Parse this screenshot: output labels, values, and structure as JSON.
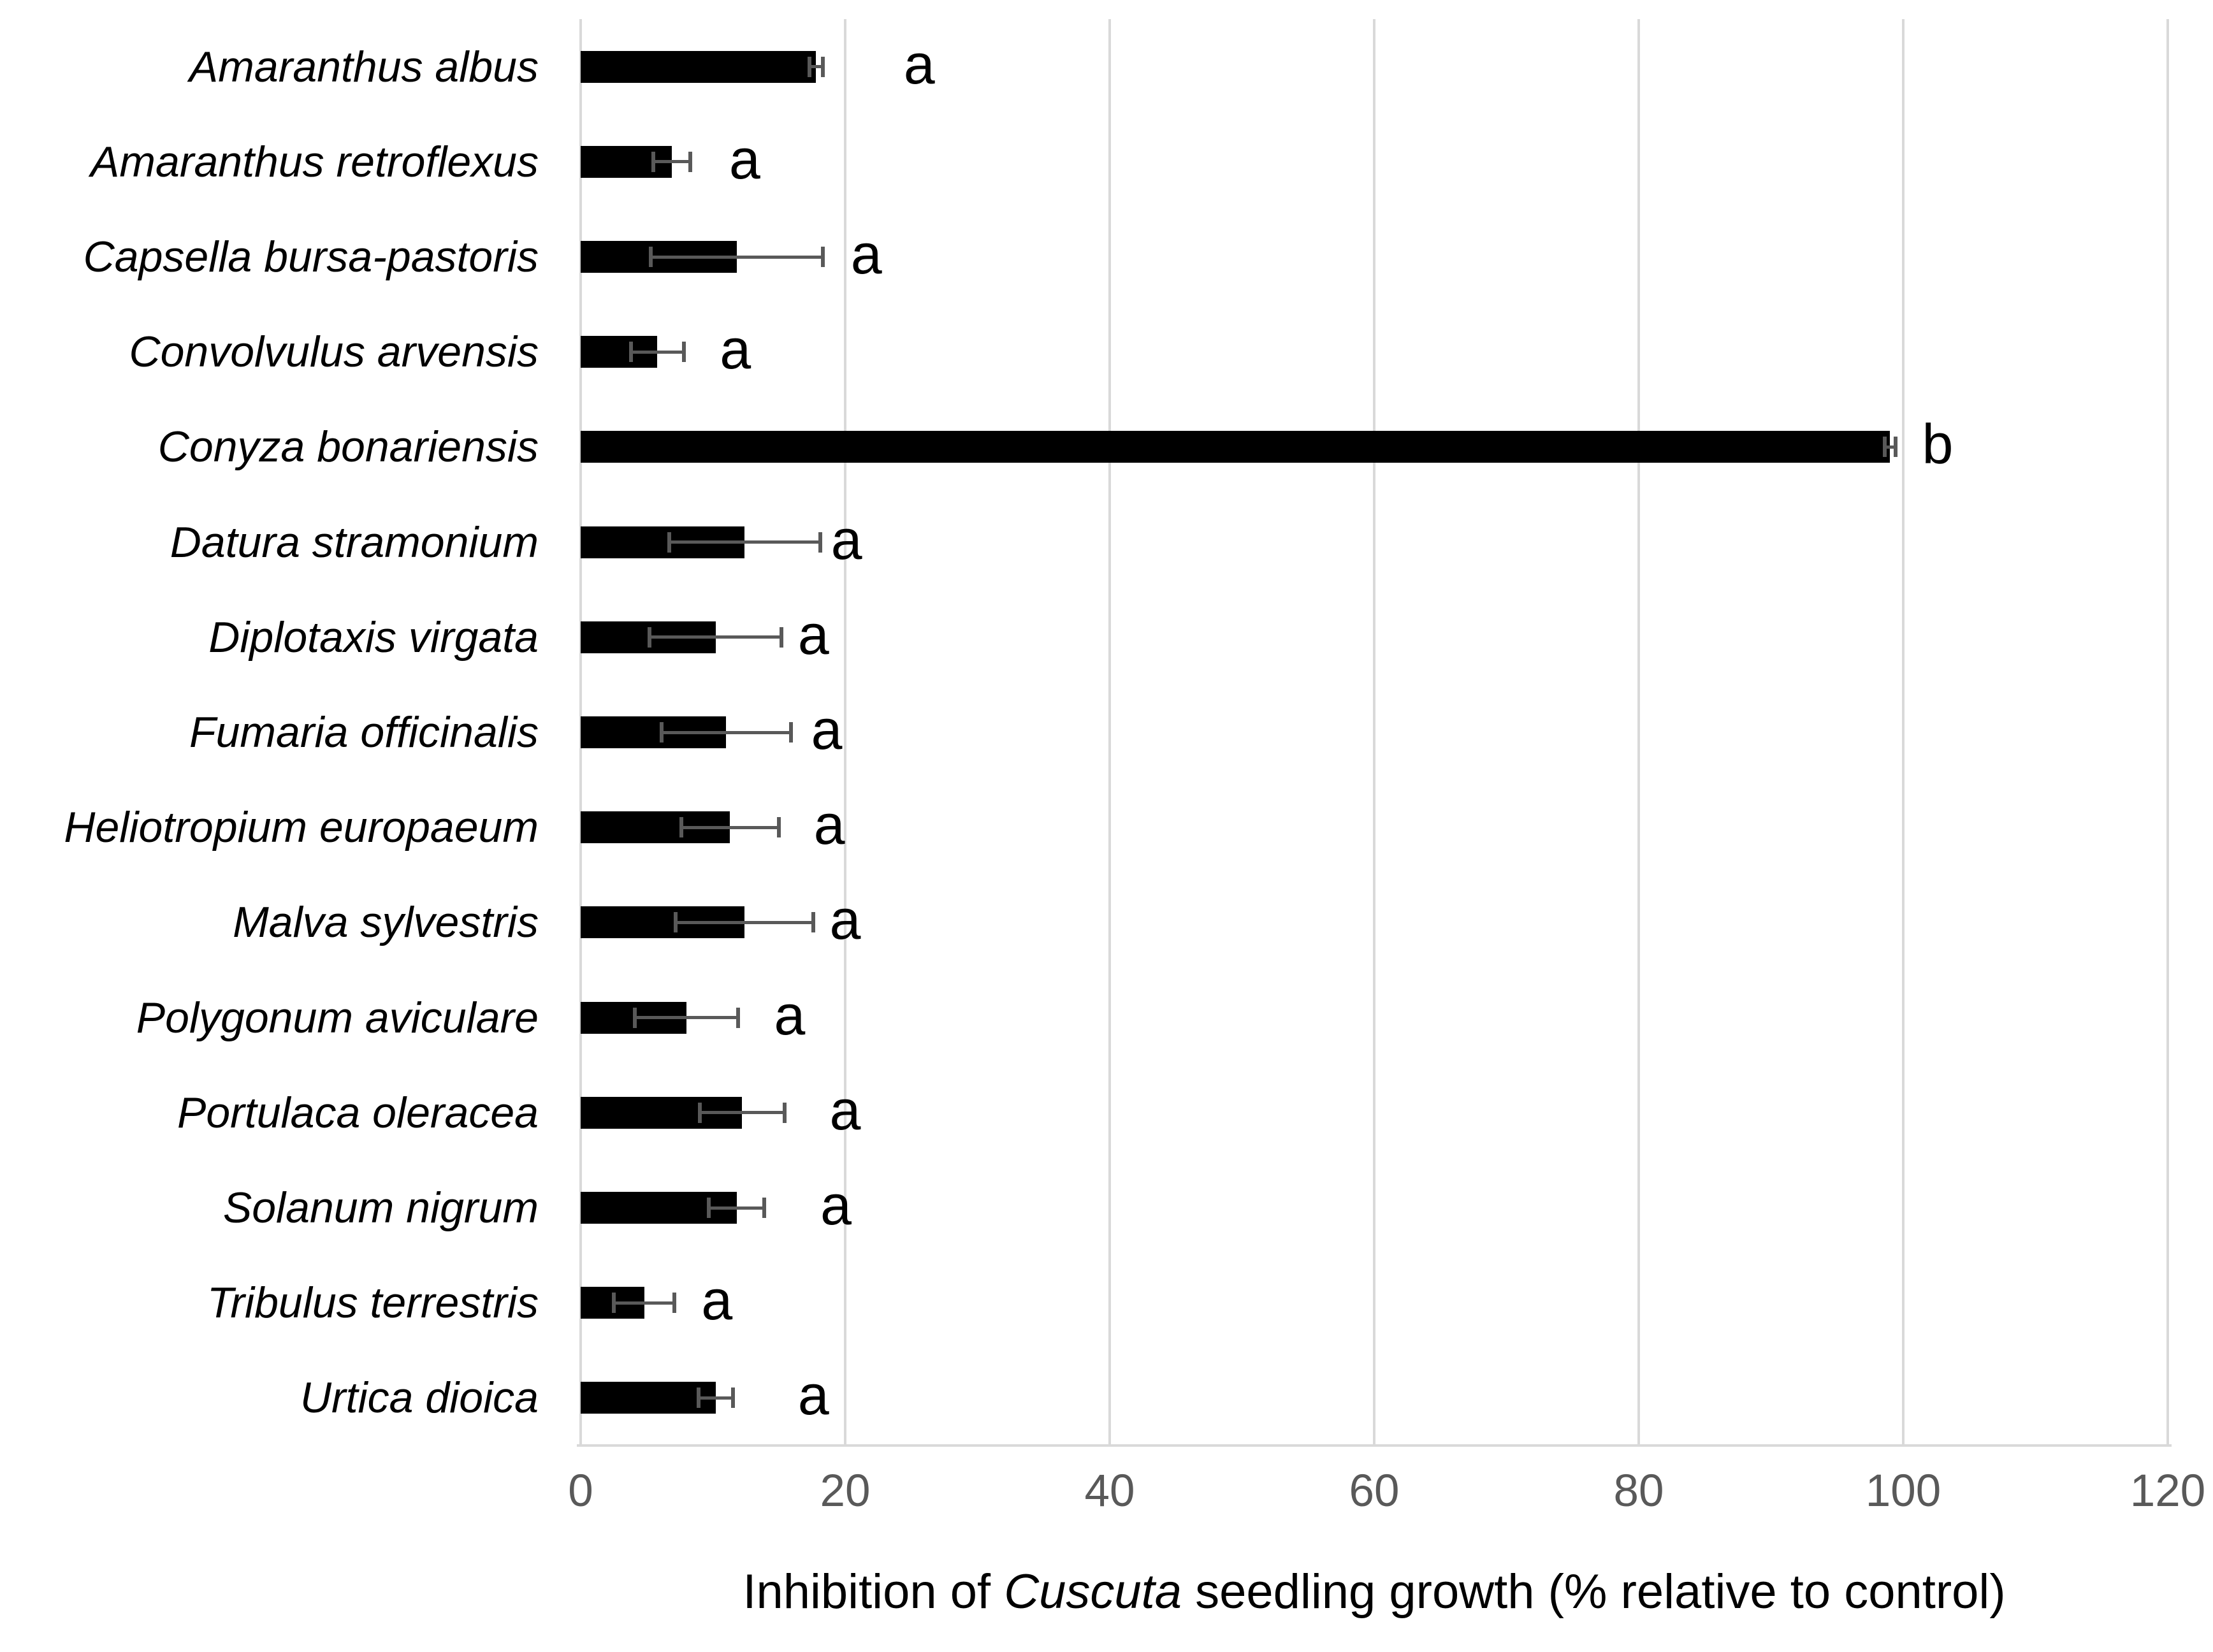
{
  "chart_data": {
    "type": "bar",
    "orientation": "horizontal",
    "title": "",
    "categories": [
      "Amaranthus albus",
      "Amaranthus retroflexus",
      "Capsella bursa-pastoris",
      "Convolvulus arvensis",
      "Conyza bonariensis",
      "Datura stramonium",
      "Diplotaxis virgata",
      "Fumaria officinalis",
      "Heliotropium europaeum",
      "Malva sylvestris",
      "Polygonum aviculare",
      "Portulaca oleracea",
      "Solanum nigrum",
      "Tribulus terrestris",
      "Urtica dioica"
    ],
    "values": [
      17.8,
      6.9,
      11.8,
      5.8,
      99.0,
      12.4,
      10.2,
      11.0,
      11.3,
      12.4,
      8.0,
      12.2,
      11.8,
      4.8,
      10.2
    ],
    "errors": [
      0.5,
      1.4,
      6.5,
      2.0,
      0.4,
      5.7,
      5.0,
      4.9,
      3.7,
      5.2,
      3.9,
      3.2,
      2.1,
      2.3,
      1.3
    ],
    "sig_letters": [
      "a",
      "a",
      "a",
      "a",
      "b",
      "a",
      "a",
      "a",
      "a",
      "a",
      "a",
      "a",
      "a",
      "a",
      "a"
    ],
    "letter_x": [
      25.6,
      12.4,
      21.6,
      11.7,
      102.6,
      20.1,
      17.6,
      18.6,
      18.8,
      20.0,
      15.8,
      20.0,
      19.3,
      10.3,
      17.6
    ],
    "xticks": [
      "0",
      "20",
      "40",
      "60",
      "80",
      "100",
      "120"
    ],
    "xtick_values": [
      0,
      20,
      40,
      60,
      80,
      100,
      120
    ],
    "xlim": [
      0,
      120
    ],
    "xlabel": {
      "prefix": "Inhibition of ",
      "italic": "Cuscuta",
      "suffix": " seedling growth (% relative to control)"
    },
    "grid": "vertical",
    "legend": "none",
    "colors": {
      "bar": "#000000",
      "error_bar": "#595959",
      "gridline": "#D9D9D9",
      "tick_label": "#595959",
      "text": "#000000"
    }
  }
}
